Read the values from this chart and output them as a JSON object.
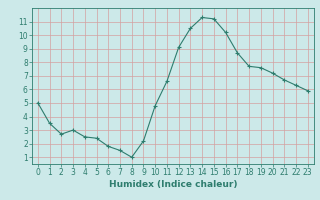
{
  "x": [
    0,
    1,
    2,
    3,
    4,
    5,
    6,
    7,
    8,
    9,
    10,
    11,
    12,
    13,
    14,
    15,
    16,
    17,
    18,
    19,
    20,
    21,
    22,
    23
  ],
  "y": [
    5.0,
    3.5,
    2.7,
    3.0,
    2.5,
    2.4,
    1.8,
    1.5,
    1.0,
    2.2,
    4.8,
    6.6,
    9.1,
    10.5,
    11.3,
    11.2,
    10.2,
    8.7,
    7.7,
    7.6,
    7.2,
    6.7,
    6.3,
    5.9
  ],
  "line_color": "#2e7d6e",
  "marker": "+",
  "marker_size": 3,
  "bg_color": "#cce9e9",
  "grid_color": "#d4a0a0",
  "xlabel": "Humidex (Indice chaleur)",
  "xlim": [
    -0.5,
    23.5
  ],
  "ylim": [
    0.5,
    12.0
  ],
  "yticks": [
    1,
    2,
    3,
    4,
    5,
    6,
    7,
    8,
    9,
    10,
    11
  ],
  "xticks": [
    0,
    1,
    2,
    3,
    4,
    5,
    6,
    7,
    8,
    9,
    10,
    11,
    12,
    13,
    14,
    15,
    16,
    17,
    18,
    19,
    20,
    21,
    22,
    23
  ],
  "tick_fontsize": 5.5,
  "label_fontsize": 6.5,
  "axis_color": "#2e7d6e"
}
